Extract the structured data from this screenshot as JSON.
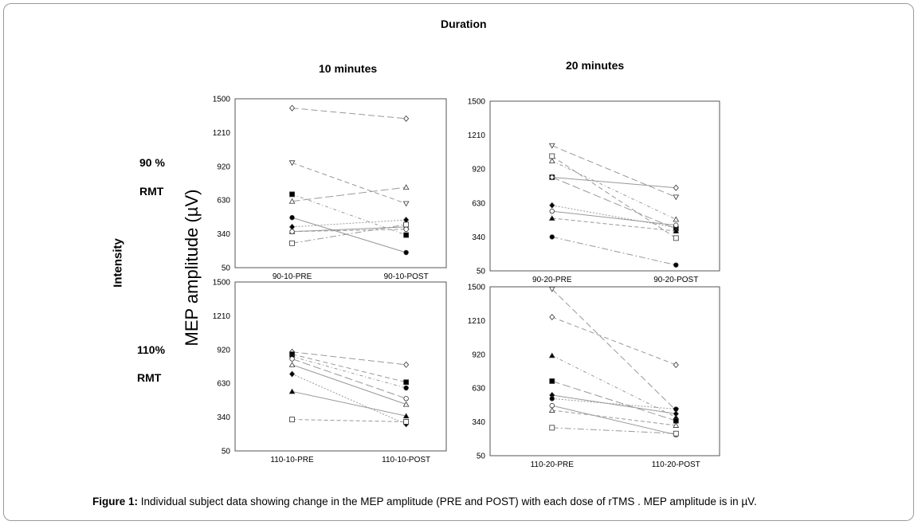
{
  "header": {
    "duration": "Duration",
    "col1": "10 minutes",
    "col2": "20 minutes"
  },
  "rows": {
    "row1_pct": "90 %",
    "row1_rmt": "RMT",
    "row2_pct": "110%",
    "row2_rmt": "RMT",
    "intensity": "Intensity"
  },
  "ylabel": "MEP amplitude (µV)",
  "caption": {
    "bold": "Figure 1:",
    "text": " Individual subject data showing change in the MEP amplitude (PRE and POST) with each dose of rTMS . MEP amplitude is in µV."
  },
  "chart_data": [
    {
      "type": "line",
      "panel": "90% RMT, 10 minutes",
      "categories": [
        "90-10-PRE",
        "90-10-POST"
      ],
      "yticks": [
        "1500",
        "1210",
        "920",
        "630",
        "340",
        "50"
      ],
      "ylim": [
        50,
        1500
      ],
      "series": [
        {
          "marker": "diamond-open",
          "values": [
            1420,
            1330
          ]
        },
        {
          "marker": "triangle-down-open",
          "values": [
            950,
            600
          ]
        },
        {
          "marker": "square-filled",
          "values": [
            680,
            330
          ]
        },
        {
          "marker": "triangle-open",
          "values": [
            620,
            740
          ]
        },
        {
          "marker": "circle-filled",
          "values": [
            480,
            180
          ]
        },
        {
          "marker": "diamond-filled",
          "values": [
            400,
            460
          ]
        },
        {
          "marker": "triangle-filled",
          "values": [
            360,
            400
          ]
        },
        {
          "marker": "circle-open",
          "values": [
            360,
            380
          ]
        },
        {
          "marker": "square-open",
          "values": [
            260,
            420
          ]
        }
      ]
    },
    {
      "type": "line",
      "panel": "90% RMT, 20 minutes",
      "categories": [
        "90-20-PRE",
        "90-20-POST"
      ],
      "yticks": [
        "1500",
        "1210",
        "920",
        "630",
        "340",
        "50"
      ],
      "ylim": [
        50,
        1500
      ],
      "series": [
        {
          "marker": "triangle-down-open",
          "values": [
            1120,
            680
          ]
        },
        {
          "marker": "square-open",
          "values": [
            1030,
            330
          ]
        },
        {
          "marker": "triangle-open",
          "values": [
            990,
            490
          ]
        },
        {
          "marker": "square-filled",
          "values": [
            850,
            410
          ]
        },
        {
          "marker": "diamond-open",
          "values": [
            850,
            760
          ]
        },
        {
          "marker": "diamond-filled",
          "values": [
            610,
            420
          ]
        },
        {
          "marker": "circle-open",
          "values": [
            560,
            440
          ]
        },
        {
          "marker": "triangle-filled",
          "values": [
            500,
            390
          ]
        },
        {
          "marker": "circle-filled",
          "values": [
            340,
            100
          ]
        }
      ]
    },
    {
      "type": "line",
      "panel": "110% RMT, 10 minutes",
      "categories": [
        "110-10-PRE",
        "110-10-POST"
      ],
      "yticks": [
        "1500",
        "1210",
        "920",
        "630",
        "340",
        "50"
      ],
      "ylim": [
        50,
        1500
      ],
      "series": [
        {
          "marker": "diamond-open",
          "values": [
            900,
            790
          ]
        },
        {
          "marker": "square-filled",
          "values": [
            880,
            640
          ]
        },
        {
          "marker": "circle-filled",
          "values": [
            860,
            590
          ]
        },
        {
          "marker": "circle-open",
          "values": [
            840,
            500
          ]
        },
        {
          "marker": "triangle-open",
          "values": [
            790,
            450
          ]
        },
        {
          "marker": "diamond-filled",
          "values": [
            710,
            280
          ]
        },
        {
          "marker": "triangle-filled",
          "values": [
            560,
            350
          ]
        },
        {
          "marker": "square-open",
          "values": [
            320,
            300
          ]
        }
      ]
    },
    {
      "type": "line",
      "panel": "110% RMT, 20 minutes",
      "categories": [
        "110-20-PRE",
        "110-20-POST"
      ],
      "yticks": [
        "1500",
        "1210",
        "920",
        "630",
        "340",
        "50"
      ],
      "ylim": [
        50,
        1500
      ],
      "series": [
        {
          "marker": "triangle-down-open",
          "values": [
            1480,
            440
          ]
        },
        {
          "marker": "diamond-open",
          "values": [
            1240,
            830
          ]
        },
        {
          "marker": "triangle-filled",
          "values": [
            910,
            380
          ]
        },
        {
          "marker": "square-filled",
          "values": [
            690,
            350
          ]
        },
        {
          "marker": "diamond-filled",
          "values": [
            570,
            410
          ]
        },
        {
          "marker": "circle-filled",
          "values": [
            540,
            450
          ]
        },
        {
          "marker": "circle-open",
          "values": [
            480,
            230
          ]
        },
        {
          "marker": "triangle-open",
          "values": [
            440,
            310
          ]
        },
        {
          "marker": "square-open",
          "values": [
            290,
            240
          ]
        }
      ]
    }
  ]
}
